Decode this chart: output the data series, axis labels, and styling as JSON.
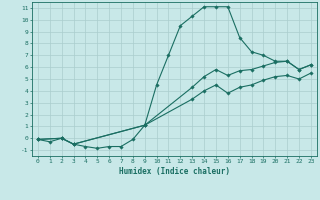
{
  "xlabel": "Humidex (Indice chaleur)",
  "xlim": [
    -0.5,
    23.5
  ],
  "ylim": [
    -1.5,
    11.5
  ],
  "xticks": [
    0,
    1,
    2,
    3,
    4,
    5,
    6,
    7,
    8,
    9,
    10,
    11,
    12,
    13,
    14,
    15,
    16,
    17,
    18,
    19,
    20,
    21,
    22,
    23
  ],
  "yticks": [
    -1,
    0,
    1,
    2,
    3,
    4,
    5,
    6,
    7,
    8,
    9,
    10,
    11
  ],
  "line_color": "#1a6e62",
  "bg_color": "#c8e8e8",
  "grid_color": "#aacece",
  "line1_x": [
    0,
    1,
    2,
    3,
    4,
    5,
    6,
    7,
    8,
    9,
    10,
    11,
    12,
    13,
    14,
    15,
    16,
    17,
    18,
    19,
    20,
    21,
    22,
    23
  ],
  "line1_y": [
    -0.1,
    -0.3,
    0.0,
    -0.5,
    -0.7,
    -0.85,
    -0.7,
    -0.7,
    -0.1,
    1.1,
    4.5,
    7.0,
    9.5,
    10.3,
    11.1,
    11.1,
    11.1,
    8.5,
    7.3,
    7.0,
    6.5,
    6.5,
    5.8,
    6.2
  ],
  "line2_x": [
    0,
    2,
    3,
    9,
    13,
    14,
    15,
    16,
    17,
    18,
    19,
    20,
    21,
    22,
    23
  ],
  "line2_y": [
    -0.1,
    0.0,
    -0.5,
    1.1,
    4.3,
    5.2,
    5.8,
    5.3,
    5.7,
    5.8,
    6.1,
    6.4,
    6.5,
    5.8,
    6.2
  ],
  "line3_x": [
    0,
    2,
    3,
    9,
    13,
    14,
    15,
    16,
    17,
    18,
    19,
    20,
    21,
    22,
    23
  ],
  "line3_y": [
    -0.1,
    0.0,
    -0.5,
    1.1,
    3.3,
    4.0,
    4.5,
    3.8,
    4.3,
    4.5,
    4.9,
    5.2,
    5.3,
    5.0,
    5.5
  ]
}
